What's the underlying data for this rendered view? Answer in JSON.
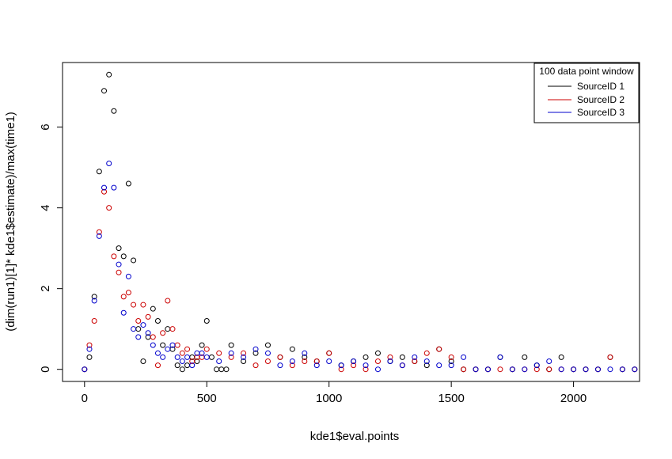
{
  "chart_data": {
    "type": "scatter",
    "xlabel": "kde1$eval.points",
    "ylabel": "(dim(run1)[1]* kde1$estimate)/max(time1)",
    "xlim": [
      -90,
      2270
    ],
    "ylim": [
      -0.3,
      7.6
    ],
    "xticks": [
      "0",
      "500",
      "1000",
      "1500",
      "2000"
    ],
    "yticks": [
      "0",
      "2",
      "4",
      "6"
    ],
    "legend": {
      "title": "100 data point window",
      "placement": "top-right",
      "entries": [
        "SourceID 1",
        "SourceID 2",
        "SourceID 3"
      ]
    },
    "series": [
      {
        "name": "SourceID 1",
        "color": "#000000",
        "x": [
          0,
          20,
          40,
          60,
          80,
          100,
          120,
          140,
          160,
          180,
          200,
          220,
          240,
          260,
          280,
          300,
          320,
          340,
          360,
          380,
          400,
          420,
          440,
          460,
          480,
          500,
          520,
          540,
          560,
          580,
          600,
          650,
          700,
          750,
          800,
          850,
          900,
          950,
          1000,
          1050,
          1100,
          1150,
          1200,
          1250,
          1300,
          1350,
          1400,
          1450,
          1500,
          1550,
          1600,
          1650,
          1700,
          1750,
          1800,
          1850,
          1900,
          1950,
          2000,
          2050,
          2100,
          2150,
          2200,
          2250
        ],
        "y": [
          0,
          0.3,
          1.8,
          4.9,
          6.9,
          7.3,
          6.4,
          3.0,
          2.8,
          4.6,
          2.7,
          1.0,
          0.2,
          0.8,
          1.5,
          1.2,
          0.6,
          1.0,
          0.5,
          0.1,
          0,
          0.1,
          0.3,
          0.2,
          0.6,
          1.2,
          0.3,
          0,
          0,
          0,
          0.6,
          0.2,
          0.4,
          0.6,
          0.3,
          0.5,
          0.3,
          0.2,
          0.4,
          0.1,
          0.2,
          0.3,
          0.4,
          0.2,
          0.3,
          0.2,
          0.1,
          0.5,
          0.2,
          0,
          0,
          0,
          0.3,
          0,
          0.3,
          0.1,
          0,
          0.3,
          0,
          0,
          0,
          0.3,
          0,
          0
        ]
      },
      {
        "name": "SourceID 2",
        "color": "#cc0000",
        "x": [
          0,
          20,
          40,
          60,
          80,
          100,
          120,
          140,
          160,
          180,
          200,
          220,
          240,
          260,
          280,
          300,
          320,
          340,
          360,
          380,
          400,
          420,
          440,
          460,
          480,
          500,
          550,
          600,
          650,
          700,
          750,
          800,
          850,
          900,
          950,
          1000,
          1050,
          1100,
          1150,
          1200,
          1250,
          1300,
          1350,
          1400,
          1450,
          1500,
          1550,
          1600,
          1650,
          1700,
          1750,
          1800,
          1850,
          1900,
          1950,
          2000,
          2050,
          2100,
          2150,
          2200,
          2250
        ],
        "y": [
          0,
          0.6,
          1.2,
          3.4,
          4.4,
          4.0,
          2.8,
          2.4,
          1.8,
          1.9,
          1.6,
          1.2,
          1.6,
          1.3,
          0.8,
          0.1,
          0.9,
          1.7,
          1.0,
          0.6,
          0.4,
          0.5,
          0.2,
          0.3,
          0.3,
          0.5,
          0.4,
          0.3,
          0.4,
          0.1,
          0.2,
          0.3,
          0.1,
          0.2,
          0.2,
          0.4,
          0,
          0.1,
          0,
          0.2,
          0.3,
          0.1,
          0.2,
          0.4,
          0.5,
          0.3,
          0,
          0,
          0,
          0,
          0,
          0,
          0,
          0,
          0,
          0,
          0,
          0,
          0.3,
          0,
          0
        ]
      },
      {
        "name": "SourceID 3",
        "color": "#0000cc",
        "x": [
          0,
          20,
          40,
          60,
          80,
          100,
          120,
          140,
          160,
          180,
          200,
          220,
          240,
          260,
          280,
          300,
          320,
          340,
          360,
          380,
          400,
          420,
          440,
          460,
          480,
          500,
          550,
          600,
          650,
          700,
          750,
          800,
          850,
          900,
          950,
          1000,
          1050,
          1100,
          1150,
          1200,
          1250,
          1300,
          1350,
          1400,
          1450,
          1500,
          1550,
          1600,
          1650,
          1700,
          1750,
          1800,
          1850,
          1900,
          1950,
          2000,
          2050,
          2100,
          2150,
          2200,
          2250
        ],
        "y": [
          0,
          0.5,
          1.7,
          3.3,
          4.5,
          5.1,
          4.5,
          2.6,
          1.4,
          2.3,
          1.0,
          0.8,
          1.1,
          0.9,
          0.6,
          0.4,
          0.3,
          0.5,
          0.6,
          0.3,
          0.2,
          0.3,
          0.1,
          0.4,
          0.4,
          0.3,
          0.2,
          0.4,
          0.3,
          0.5,
          0.4,
          0.1,
          0.2,
          0.4,
          0.1,
          0.2,
          0.1,
          0.2,
          0.1,
          0,
          0.2,
          0.1,
          0.3,
          0.2,
          0.1,
          0.1,
          0.3,
          0,
          0,
          0.3,
          0,
          0,
          0.1,
          0.2,
          0,
          0,
          0,
          0,
          0,
          0,
          0
        ]
      }
    ]
  }
}
